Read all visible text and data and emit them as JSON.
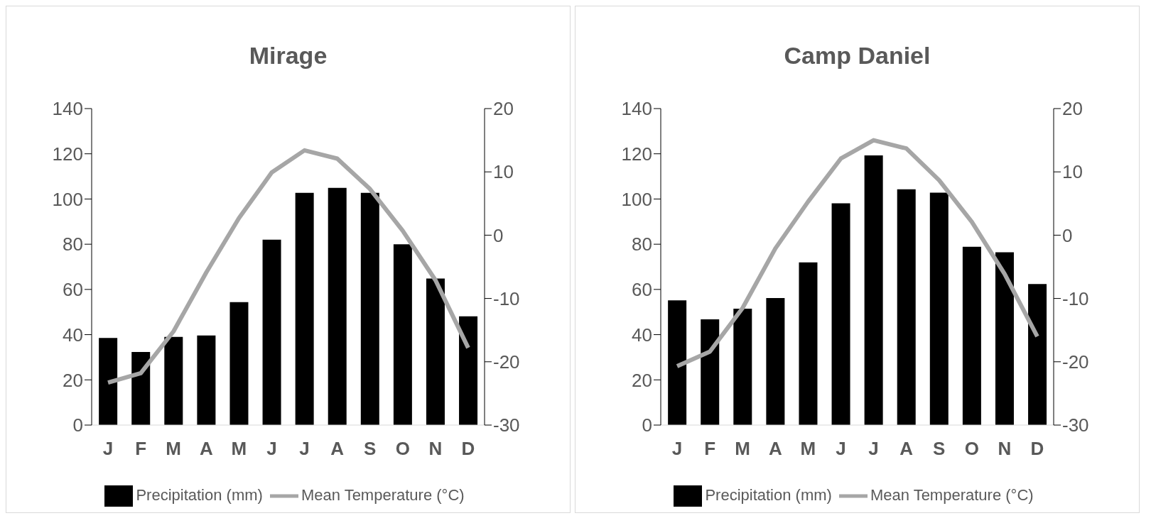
{
  "chart_data": [
    {
      "type": "bar",
      "title": "Mirage",
      "categories": [
        "J",
        "F",
        "M",
        "A",
        "M",
        "J",
        "J",
        "A",
        "S",
        "O",
        "N",
        "D"
      ],
      "series": [
        {
          "name": "Precipitation (mm)",
          "color": "#000000",
          "values": [
            38.5,
            32.3,
            39,
            39.6,
            54.4,
            82,
            102.7,
            104.9,
            102.7,
            80,
            64.8,
            48.1
          ]
        },
        {
          "name": "Mean Temperature (°C)",
          "type": "line",
          "axis": "y2",
          "color": "#a6a6a6",
          "values": [
            -23.3,
            -21.8,
            -15.2,
            -5.9,
            2.7,
            9.9,
            13.4,
            12.1,
            7.3,
            0.7,
            -7.1,
            -17.8
          ]
        }
      ],
      "ylim": [
        0,
        140
      ],
      "yticks": [
        0,
        20,
        40,
        60,
        80,
        100,
        120,
        140
      ],
      "y2lim": [
        -30,
        20
      ],
      "y2ticks": [
        -30,
        -20,
        -10,
        0,
        10,
        20
      ],
      "grid": false,
      "legend": "bottom"
    },
    {
      "type": "bar",
      "title": "Camp Daniel",
      "categories": [
        "J",
        "F",
        "M",
        "A",
        "M",
        "J",
        "J",
        "A",
        "S",
        "O",
        "N",
        "D"
      ],
      "series": [
        {
          "name": "Precipitation (mm)",
          "color": "#000000",
          "values": [
            55.2,
            46.8,
            51.5,
            56.2,
            72,
            98.1,
            119.3,
            104.3,
            102.8,
            78.9,
            76.4,
            62.4
          ]
        },
        {
          "name": "Mean Temperature (°C)",
          "type": "line",
          "axis": "y2",
          "color": "#a6a6a6",
          "values": [
            -20.7,
            -18.4,
            -11.5,
            -2.1,
            5.3,
            12.1,
            15,
            13.7,
            8.7,
            2.1,
            -6.1,
            -16
          ]
        }
      ],
      "ylim": [
        0,
        140
      ],
      "yticks": [
        0,
        20,
        40,
        60,
        80,
        100,
        120,
        140
      ],
      "y2lim": [
        -30,
        20
      ],
      "y2ticks": [
        -30,
        -20,
        -10,
        0,
        10,
        20
      ],
      "grid": false,
      "legend": "bottom"
    }
  ]
}
